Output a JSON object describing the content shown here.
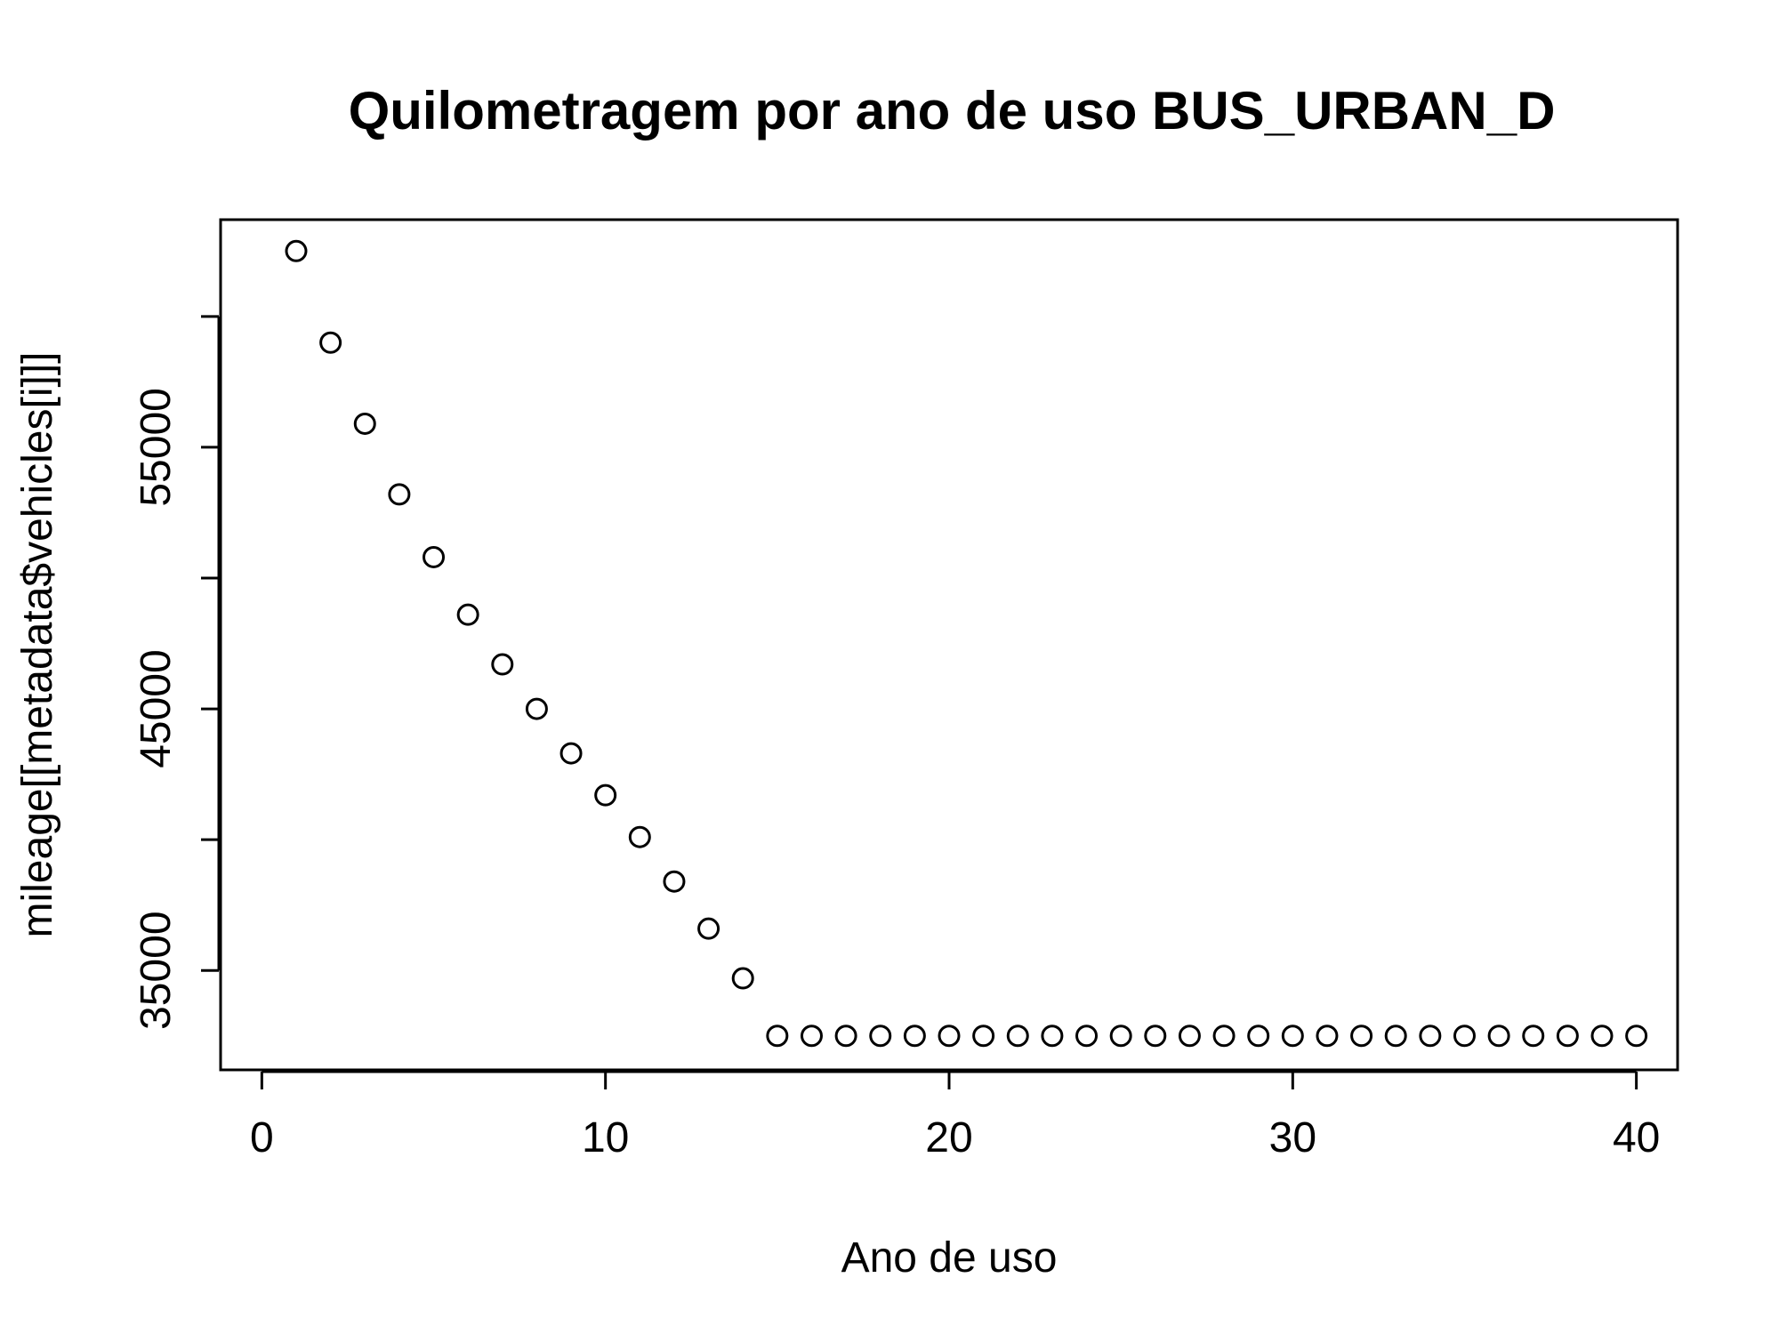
{
  "chart_data": {
    "type": "scatter",
    "title": "Quilometragem por ano de uso BUS_URBAN_D",
    "xlabel": "Ano de uso",
    "ylabel": "mileage[[metadata$vehicles[i]]]",
    "xlim": [
      -1.2,
      41.2
    ],
    "ylim": [
      31200,
      63700
    ],
    "x_ticks": [
      0,
      10,
      20,
      30,
      40
    ],
    "y_ticks": [
      35000,
      40000,
      45000,
      50000,
      55000,
      60000
    ],
    "y_tick_labels": [
      "35000",
      "",
      "45000",
      "",
      "55000",
      ""
    ],
    "marker": "open-circle",
    "grid": false,
    "legend": "none",
    "x": [
      1,
      2,
      3,
      4,
      5,
      6,
      7,
      8,
      9,
      10,
      11,
      12,
      13,
      14,
      15,
      16,
      17,
      18,
      19,
      20,
      21,
      22,
      23,
      24,
      25,
      26,
      27,
      28,
      29,
      30,
      31,
      32,
      33,
      34,
      35,
      36,
      37,
      38,
      39,
      40
    ],
    "y": [
      62500,
      59000,
      55900,
      53200,
      50800,
      48600,
      46700,
      45000,
      43300,
      41700,
      40100,
      38400,
      36600,
      34700,
      32500,
      32500,
      32500,
      32500,
      32500,
      32500,
      32500,
      32500,
      32500,
      32500,
      32500,
      32500,
      32500,
      32500,
      32500,
      32500,
      32500,
      32500,
      32500,
      32500,
      32500,
      32500,
      32500,
      32500,
      32500,
      32500
    ]
  }
}
